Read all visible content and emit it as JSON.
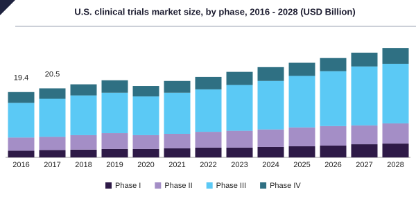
{
  "chart_data": {
    "type": "stacked_bar",
    "title": "U.S. clinical trials market size, by phase, 2016 - 2028 (USD Billion)",
    "categories": [
      "2016",
      "2017",
      "2018",
      "2019",
      "2020",
      "2021",
      "2022",
      "2023",
      "2024",
      "2025",
      "2026",
      "2027",
      "2028"
    ],
    "series": [
      {
        "name": "Phase I",
        "color": "#2e1a47",
        "values": [
          2.0,
          2.2,
          2.3,
          2.5,
          2.5,
          2.7,
          2.9,
          2.9,
          3.1,
          3.3,
          3.5,
          3.9,
          4.1
        ]
      },
      {
        "name": "Phase II",
        "color": "#a48ec6",
        "values": [
          3.9,
          3.9,
          4.3,
          4.7,
          4.1,
          4.3,
          4.7,
          5.0,
          5.2,
          5.6,
          5.8,
          5.6,
          6.0
        ]
      },
      {
        "name": "Phase III",
        "color": "#5bc9f5",
        "values": [
          10.3,
          11.3,
          11.8,
          12.0,
          11.5,
          12.2,
          12.6,
          13.6,
          14.4,
          15.3,
          16.3,
          17.5,
          17.7
        ]
      },
      {
        "name": "Phase IV",
        "color": "#2f7083",
        "values": [
          3.2,
          3.1,
          3.3,
          3.7,
          3.1,
          3.5,
          3.7,
          3.9,
          4.1,
          3.9,
          3.9,
          4.1,
          4.7
        ]
      }
    ],
    "totals": [
      19.4,
      20.5
    ],
    "ylim": [
      0,
      35
    ]
  }
}
